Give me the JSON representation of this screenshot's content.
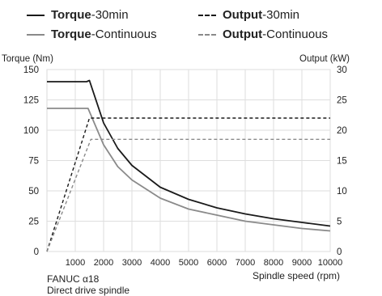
{
  "legend": [
    {
      "bold": "Torque",
      "rest": "-30min",
      "style": "solid",
      "color": "#1a1a1a"
    },
    {
      "bold": "Output",
      "rest": "-30min",
      "style": "dashed",
      "color": "#1a1a1a"
    },
    {
      "bold": "Torque",
      "rest": "-Continuous",
      "style": "solid",
      "color": "#8a8a8a"
    },
    {
      "bold": "Output",
      "rest": "-Continuous",
      "style": "dashed",
      "color": "#8a8a8a"
    }
  ],
  "caption": {
    "line1": "FANUC α18",
    "line2": "Direct drive spindle"
  },
  "chart_data": {
    "type": "line",
    "title": "",
    "xlabel": "Spindle speed (rpm)",
    "ylabel": "Torque (Nm)",
    "y2label": "Output (kW)",
    "xlim": [
      0,
      10000
    ],
    "ylim": [
      0,
      150
    ],
    "y2lim": [
      0,
      30
    ],
    "xticks": [
      1000,
      2000,
      3000,
      4000,
      5000,
      6000,
      7000,
      8000,
      9000,
      10000
    ],
    "yticks": [
      0,
      25,
      50,
      75,
      100,
      125,
      150
    ],
    "y2ticks": [
      0,
      5,
      10,
      15,
      20,
      25,
      30
    ],
    "grid": true,
    "series": [
      {
        "name": "Torque-30min",
        "axis": "left",
        "color": "#1a1a1a",
        "dash": false,
        "x": [
          0,
          1400,
          1500,
          2000,
          2500,
          3000,
          4000,
          5000,
          6000,
          7000,
          8000,
          9000,
          10000
        ],
        "y": [
          140,
          140,
          141,
          106,
          85,
          71,
          53,
          43,
          36,
          31,
          27,
          24,
          21
        ]
      },
      {
        "name": "Torque-Continuous",
        "axis": "left",
        "color": "#8a8a8a",
        "dash": false,
        "x": [
          0,
          1450,
          2000,
          2500,
          3000,
          4000,
          5000,
          6000,
          7000,
          8000,
          9000,
          10000
        ],
        "y": [
          118,
          118,
          88,
          70,
          59,
          44,
          35,
          30,
          25,
          22,
          19,
          17
        ]
      },
      {
        "name": "Output-30min",
        "axis": "right",
        "color": "#1a1a1a",
        "dash": true,
        "x": [
          0,
          1500,
          10000
        ],
        "y": [
          0,
          22,
          22
        ]
      },
      {
        "name": "Output-Continuous",
        "axis": "right",
        "color": "#8a8a8a",
        "dash": true,
        "x": [
          0,
          1550,
          10000
        ],
        "y": [
          0,
          18.5,
          18.5
        ]
      }
    ]
  }
}
